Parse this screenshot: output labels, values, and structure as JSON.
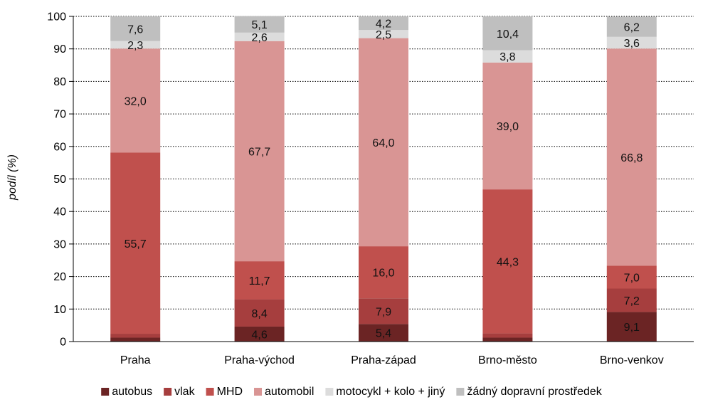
{
  "chart_data": {
    "type": "bar",
    "stacked": true,
    "categories": [
      "Praha",
      "Praha-východ",
      "Praha-západ",
      "Brno-město",
      "Brno-venkov"
    ],
    "ylabel": "podíl (%)",
    "xlabel": "",
    "ylim": [
      0,
      100
    ],
    "yticks": [
      0,
      10,
      20,
      30,
      40,
      50,
      60,
      70,
      80,
      90,
      100
    ],
    "grid": "horizontal dotted",
    "legend_position": "bottom",
    "series": [
      {
        "name": "autobus",
        "color": "#6b2424",
        "values": [
          1.2,
          4.6,
          5.4,
          1.2,
          9.1
        ],
        "labels": [
          "",
          "4,6",
          "5,4",
          "",
          "9,1"
        ]
      },
      {
        "name": "vlak",
        "color": "#a63e3e",
        "values": [
          1.2,
          8.4,
          7.9,
          1.3,
          7.2
        ],
        "labels": [
          "",
          "8,4",
          "7,9",
          "",
          "7,2"
        ]
      },
      {
        "name": "MHD",
        "color": "#c0504d",
        "values": [
          55.7,
          11.7,
          16.0,
          44.3,
          7.0
        ],
        "labels": [
          "55,7",
          "11,7",
          "16,0",
          "44,3",
          "7,0"
        ]
      },
      {
        "name": "automobil",
        "color": "#d99594",
        "values": [
          32.0,
          67.7,
          64.0,
          39.0,
          66.8
        ],
        "labels": [
          "32,0",
          "67,7",
          "64,0",
          "39,0",
          "66,8"
        ]
      },
      {
        "name": "motocykl + kolo + jiný",
        "color": "#dcdcdc",
        "values": [
          2.3,
          2.6,
          2.5,
          3.8,
          3.6
        ],
        "labels": [
          "2,3",
          "2,6",
          "2,5",
          "3,8",
          "3,6"
        ]
      },
      {
        "name": "žádný dopravní prostředek",
        "color": "#bfbfbf",
        "values": [
          7.6,
          5.1,
          4.2,
          10.4,
          6.2
        ],
        "labels": [
          "7,6",
          "5,1",
          "4,2",
          "10,4",
          "6,2"
        ]
      }
    ]
  }
}
